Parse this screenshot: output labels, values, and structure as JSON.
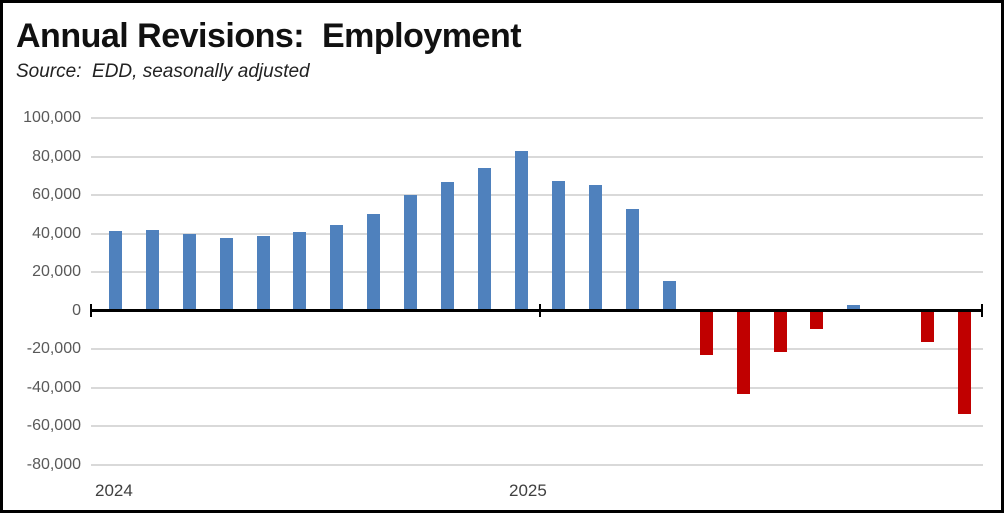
{
  "header": {
    "title": "Annual Revisions:  Employment",
    "subtitle": "Source:  EDD, seasonally adjusted"
  },
  "chart_data": {
    "type": "bar",
    "title": "Annual Revisions:  Employment",
    "subtitle": "Source:  EDD, seasonally adjusted",
    "x": [
      "Jan 2024",
      "Feb 2024",
      "Mar 2024",
      "Apr 2024",
      "May 2024",
      "Jun 2024",
      "Jul 2024",
      "Aug 2024",
      "Sep 2024",
      "Oct 2024",
      "Nov 2024",
      "Dec 2024",
      "Jan 2025",
      "Feb 2025",
      "Mar 2025",
      "Apr 2025",
      "May 2025",
      "Jun 2025",
      "Jul 2025",
      "Aug 2025",
      "Sep 2025",
      "Oct 2025",
      "Nov 2025",
      "Dec 2025"
    ],
    "values": [
      41500,
      42000,
      40000,
      37500,
      38500,
      41000,
      44500,
      50000,
      60000,
      67000,
      74000,
      83000,
      67500,
      65000,
      52500,
      15500,
      -23000,
      -43500,
      -21500,
      -9500,
      3000,
      0,
      -16500,
      -54000
    ],
    "ylim": [
      -80000,
      100000
    ],
    "ytick_step": 20000,
    "ytick_values": [
      100000,
      80000,
      60000,
      40000,
      20000,
      0,
      -20000,
      -40000,
      -60000,
      -80000
    ],
    "ytick_labels": [
      "100,000",
      "80,000",
      "60,000",
      "40,000",
      "20,000",
      "0",
      "-20,000",
      "-40,000",
      "-60,000",
      "-80,000"
    ],
    "xtick_labels": [
      "2024",
      "2025"
    ],
    "grid": "horizontal",
    "legend": "none",
    "positive_color": "#4F81BD",
    "negative_color": "#C00000",
    "gridline_color": "#D9D9D9",
    "axis_color": "#000000",
    "ytick_label_color": "#595959",
    "xtick_label_color": "#404040"
  }
}
